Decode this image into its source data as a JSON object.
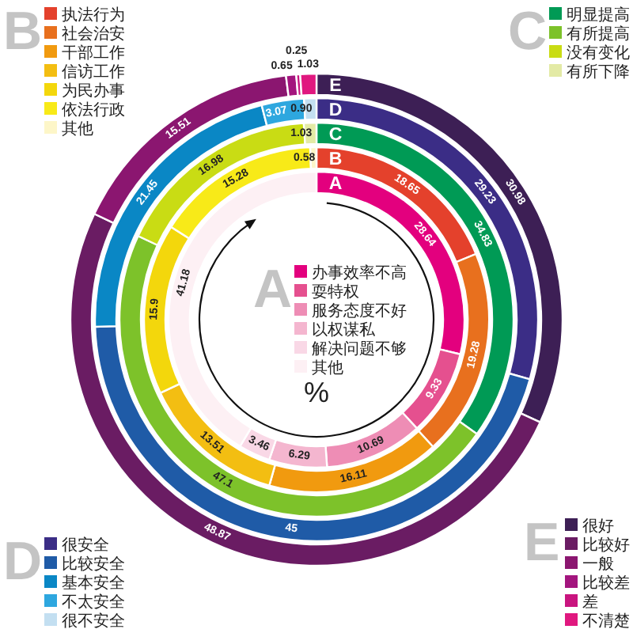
{
  "chart_data": [
    {
      "type": "donut",
      "title": "A",
      "categories": [
        "办事效率不高",
        "耍特权",
        "服务态度不好",
        "以权谋私",
        "解决问题不够",
        "其他"
      ],
      "values": [
        28.64,
        9.33,
        10.69,
        6.29,
        3.46,
        41.18
      ],
      "value_labels": [
        "28.64",
        "9.33",
        "10.69",
        "6.29",
        "3.46",
        "41.18"
      ],
      "colors": [
        "#e3007e",
        "#e5508f",
        "#ee8db5",
        "#f4b6cf",
        "#f9d8e6",
        "#fdf0f4"
      ],
      "legend": "center",
      "annotations": [
        "%"
      ]
    },
    {
      "type": "donut",
      "title": "B",
      "categories": [
        "执法行为",
        "社会治安",
        "干部工作",
        "信访工作",
        "为民办事",
        "依法行政",
        "其他"
      ],
      "values": [
        18.65,
        19.28,
        16.11,
        13.51,
        15.9,
        15.28,
        0.58
      ],
      "value_labels": [
        "18.65",
        "19.28",
        "16.11",
        "13.51",
        "15.9",
        "15.28",
        "0.58"
      ],
      "colors": [
        "#e4412c",
        "#e8701e",
        "#f19a0f",
        "#f3be12",
        "#f3d70c",
        "#f8ea18",
        "#fdf6c8"
      ],
      "legend": "top left"
    },
    {
      "type": "donut",
      "title": "C",
      "categories": [
        "明显提高",
        "有所提高",
        "没有变化",
        "有所下降"
      ],
      "values": [
        34.83,
        47.1,
        16.98,
        1.03
      ],
      "value_labels": [
        "34.83",
        "47.1",
        "16.98",
        "1.03"
      ],
      "colors": [
        "#009a55",
        "#7dc22a",
        "#c9dc14",
        "#e3eaa5"
      ],
      "legend": "top right"
    },
    {
      "type": "donut",
      "title": "D",
      "categories": [
        "很安全",
        "比较安全",
        "基本安全",
        "不太安全",
        "很不安全"
      ],
      "values": [
        29.23,
        45,
        21.45,
        3.07,
        0.9
      ],
      "value_labels": [
        "29.23",
        "45",
        "21.45",
        "3.07",
        "0.90"
      ],
      "colors": [
        "#3b2d86",
        "#1f5ba7",
        "#0a87c5",
        "#2ea7df",
        "#c3dff1"
      ],
      "legend": "bottom left"
    },
    {
      "type": "donut",
      "title": "E",
      "categories": [
        "很好",
        "比较好",
        "一般",
        "比较差",
        "差",
        "不清楚"
      ],
      "values": [
        30.98,
        48.87,
        15.51,
        0.65,
        0.25,
        1.03
      ],
      "value_labels": [
        "30.98",
        "48.87",
        "15.51",
        "0.65",
        "0.25",
        "1.03"
      ],
      "colors": [
        "#3d1f55",
        "#6a1c63",
        "#8b1670",
        "#a3157e",
        "#c9147f",
        "#e0187f"
      ],
      "legend": "bottom right"
    }
  ]
}
